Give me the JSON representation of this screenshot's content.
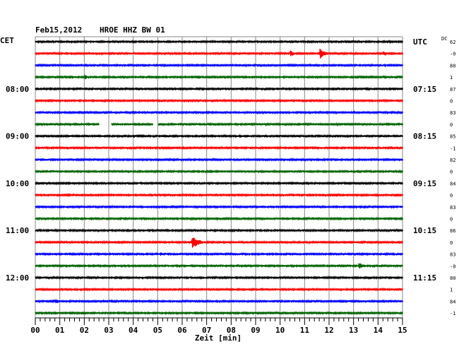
{
  "header": {
    "date": "Feb15,2012",
    "station": "HROE HHZ BW 01",
    "left_zone": "CET",
    "right_zone": "UTC",
    "dc_header": "DC"
  },
  "chart_data": {
    "type": "line",
    "title": "Feb15,2012   HROE HHZ BW 01",
    "xlabel": "Zeit [min]",
    "x_ticks": [
      "00",
      "01",
      "02",
      "03",
      "04",
      "05",
      "06",
      "07",
      "08",
      "09",
      "10",
      "11",
      "12",
      "13",
      "14",
      "15"
    ],
    "xlim": [
      0,
      15
    ],
    "trace_colors": [
      "#000000",
      "#ff0000",
      "#0000ff",
      "#006400"
    ],
    "row_count": 24,
    "left_hour_labels": [
      {
        "row": 4,
        "text": "08:00"
      },
      {
        "row": 8,
        "text": "09:00"
      },
      {
        "row": 12,
        "text": "10:00"
      },
      {
        "row": 16,
        "text": "11:00"
      },
      {
        "row": 20,
        "text": "12:00"
      }
    ],
    "right_hour_labels": [
      {
        "row": 0,
        "text": "UTC"
      },
      {
        "row": 4,
        "text": "07:15"
      },
      {
        "row": 8,
        "text": "08:15"
      },
      {
        "row": 12,
        "text": "09:15"
      },
      {
        "row": 16,
        "text": "10:15"
      },
      {
        "row": 20,
        "text": "11:15"
      }
    ],
    "dc_offsets": [
      "62",
      "-0",
      "80",
      "1",
      "87",
      "0",
      "83",
      "0",
      "85",
      "-1",
      "82",
      "0",
      "84",
      "0",
      "83",
      "0",
      "86",
      "0",
      "83",
      "-0",
      "80",
      "1",
      "84",
      "-1"
    ],
    "events": [
      {
        "row": 1,
        "minute": 10.4,
        "amplitude": 5,
        "duration": 0.4
      },
      {
        "row": 1,
        "minute": 11.6,
        "amplitude": 8,
        "duration": 0.5
      },
      {
        "row": 1,
        "minute": 14.2,
        "amplitude": 4,
        "duration": 0.5
      },
      {
        "row": 3,
        "minute": 2.0,
        "amplitude": 4,
        "duration": 0.3
      },
      {
        "row": 7,
        "minute": 12.3,
        "amplitude": 3,
        "duration": 0.3
      },
      {
        "row": 8,
        "minute": 4.0,
        "amplitude": 3,
        "duration": 0.3
      },
      {
        "row": 15,
        "minute": 5.3,
        "amplitude": 3,
        "duration": 0.2
      },
      {
        "row": 17,
        "minute": 6.4,
        "amplitude": 9,
        "duration": 0.7
      },
      {
        "row": 18,
        "minute": 5.1,
        "amplitude": 3,
        "duration": 0.4
      },
      {
        "row": 19,
        "minute": 13.2,
        "amplitude": 5,
        "duration": 0.6
      },
      {
        "row": 22,
        "minute": 0.8,
        "amplitude": 4,
        "duration": 0.4
      }
    ],
    "gaps": [
      {
        "row": 7,
        "start_minute": 2.6,
        "end_minute": 3.1
      },
      {
        "row": 7,
        "start_minute": 4.8,
        "end_minute": 5.0
      }
    ],
    "grid": true
  }
}
